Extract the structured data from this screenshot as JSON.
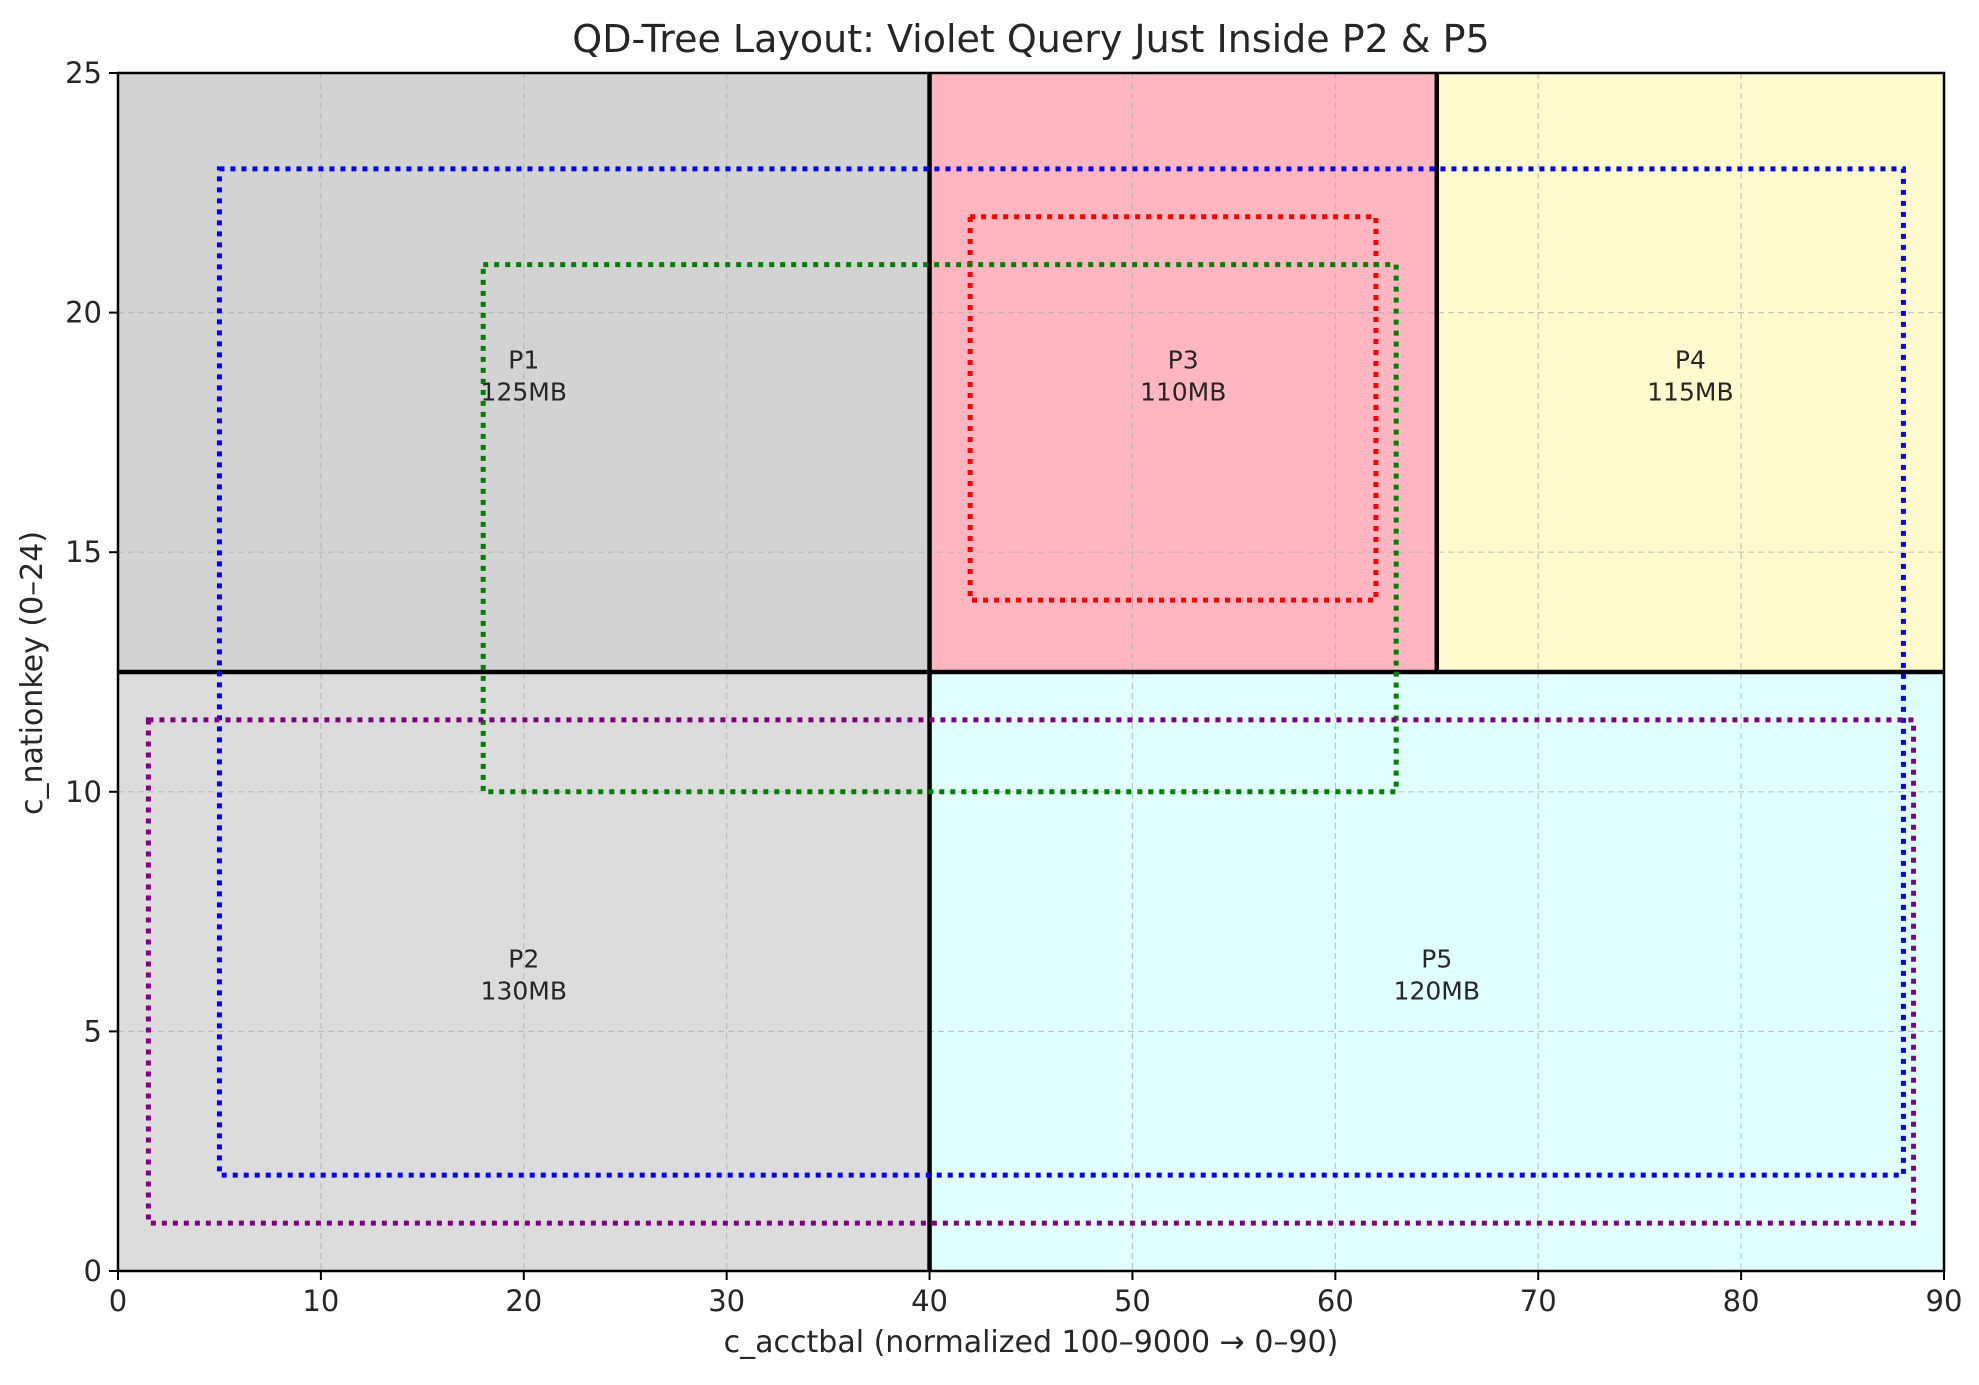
{
  "chart_data": {
    "type": "rectangle_layout",
    "title": "QD-Tree Layout: Violet Query Just Inside P2 & P5",
    "xlabel": "c_acctbal (normalized 100–9000 → 0–90)",
    "ylabel": "c_nationkey (0–24)",
    "xlim": [
      0,
      90
    ],
    "ylim": [
      0,
      25
    ],
    "xticks": [
      0,
      10,
      20,
      30,
      40,
      50,
      60,
      70,
      80,
      90
    ],
    "yticks": [
      0,
      5,
      10,
      15,
      20,
      25
    ],
    "grid": true,
    "partitions": [
      {
        "name": "P1",
        "size": "125MB",
        "x0": 0,
        "x1": 40,
        "y0": 12.5,
        "y1": 25,
        "color": "#d3d3d3"
      },
      {
        "name": "P2",
        "size": "130MB",
        "x0": 0,
        "x1": 40,
        "y0": 0,
        "y1": 12.5,
        "color": "#dcdcdc"
      },
      {
        "name": "P3",
        "size": "110MB",
        "x0": 40,
        "x1": 65,
        "y0": 12.5,
        "y1": 25,
        "color": "#ffb6c1"
      },
      {
        "name": "P4",
        "size": "115MB",
        "x0": 65,
        "x1": 90,
        "y0": 12.5,
        "y1": 25,
        "color": "#fffacd"
      },
      {
        "name": "P5",
        "size": "120MB",
        "x0": 40,
        "x1": 90,
        "y0": 0,
        "y1": 12.5,
        "color": "#e0ffff"
      }
    ],
    "partition_labels": [
      {
        "partition": "P1",
        "x": 20,
        "y": 18.75
      },
      {
        "partition": "P2",
        "x": 20,
        "y": 6.25
      },
      {
        "partition": "P3",
        "x": 52.5,
        "y": 18.75
      },
      {
        "partition": "P4",
        "x": 77.5,
        "y": 18.75
      },
      {
        "partition": "P5",
        "x": 65,
        "y": 6.25
      }
    ],
    "splits": [
      {
        "orientation": "horizontal",
        "at": 12.5,
        "from": 0,
        "to": 90
      },
      {
        "orientation": "vertical",
        "at": 40,
        "from": 0,
        "to": 25
      },
      {
        "orientation": "vertical",
        "at": 65,
        "from": 12.5,
        "to": 25
      }
    ],
    "queries": [
      {
        "color": "#0000ff",
        "x0": 5,
        "x1": 88,
        "y0": 2,
        "y1": 23
      },
      {
        "color": "#ff0000",
        "x0": 42,
        "x1": 62,
        "y0": 14,
        "y1": 22
      },
      {
        "color": "#008000",
        "x0": 18,
        "x1": 63,
        "y0": 10,
        "y1": 21
      },
      {
        "color": "#800080",
        "x0": 1.5,
        "x1": 88.5,
        "y0": 1,
        "y1": 11.5
      }
    ]
  }
}
